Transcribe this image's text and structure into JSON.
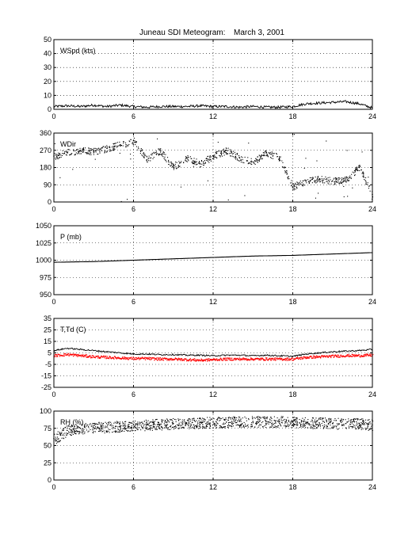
{
  "figure": {
    "title_left": "Juneau SDI Meteogram:",
    "title_date": "March  3, 2001"
  },
  "colors": {
    "axis": "#000000",
    "grid": "#000000",
    "series_black": "#000000",
    "series_red": "#ff0000"
  },
  "chart_data": [
    {
      "type": "line",
      "label": "WSpd (kts)",
      "xlim": [
        0,
        24
      ],
      "ylim": [
        0,
        50
      ],
      "xticks": [
        0,
        6,
        12,
        18,
        24
      ],
      "yticks": [
        0,
        10,
        20,
        30,
        40,
        50
      ],
      "grid": true,
      "series": [
        {
          "color": "#000000",
          "x": [
            0,
            1,
            2,
            3,
            4,
            5,
            6,
            7,
            8,
            9,
            10,
            11,
            12,
            13,
            14,
            15,
            16,
            17,
            18,
            19,
            20,
            21,
            22,
            23,
            24
          ],
          "values": [
            2,
            2.5,
            2,
            3,
            2,
            3,
            2,
            1.5,
            2,
            2,
            2,
            2.5,
            2,
            2,
            1.5,
            2,
            1.5,
            1.5,
            2,
            4,
            4.5,
            5,
            5.5,
            4,
            1
          ]
        }
      ]
    },
    {
      "type": "scatter",
      "label": "WDir",
      "xlim": [
        0,
        24
      ],
      "ylim": [
        0,
        360
      ],
      "xticks": [
        0,
        6,
        12,
        18,
        24
      ],
      "yticks": [
        0,
        90,
        180,
        270,
        360
      ],
      "grid": true,
      "series": [
        {
          "color": "#000000",
          "x": [
            0,
            1,
            2,
            3,
            4,
            5,
            6,
            7,
            8,
            9,
            10,
            11,
            12,
            13,
            14,
            15,
            16,
            17,
            18,
            19,
            20,
            21,
            22,
            23,
            24
          ],
          "values": [
            240,
            260,
            270,
            265,
            280,
            300,
            320,
            220,
            270,
            180,
            230,
            200,
            240,
            270,
            230,
            210,
            260,
            230,
            80,
            110,
            120,
            110,
            120,
            180,
            40
          ]
        }
      ]
    },
    {
      "type": "line",
      "label": "P (mb)",
      "xlim": [
        0,
        24
      ],
      "ylim": [
        950,
        1050
      ],
      "xticks": [
        0,
        6,
        12,
        18,
        24
      ],
      "yticks": [
        950,
        975,
        1000,
        1025,
        1050
      ],
      "grid": true,
      "series": [
        {
          "color": "#000000",
          "x": [
            0,
            3,
            6,
            9,
            12,
            15,
            18,
            21,
            24
          ],
          "values": [
            997,
            998,
            1000,
            1002,
            1004,
            1006,
            1007,
            1009,
            1011
          ]
        }
      ]
    },
    {
      "type": "line",
      "label": "T,Td (C)",
      "xlim": [
        0,
        24
      ],
      "ylim": [
        -25,
        35
      ],
      "xticks": [
        0,
        6,
        12,
        18,
        24
      ],
      "yticks": [
        -25,
        -15,
        -5,
        5,
        15,
        25,
        35
      ],
      "grid": true,
      "series": [
        {
          "color": "#000000",
          "x": [
            0,
            1,
            2,
            3,
            4,
            5,
            6,
            7,
            8,
            9,
            10,
            11,
            12,
            13,
            14,
            15,
            16,
            17,
            18,
            19,
            20,
            21,
            22,
            23,
            24
          ],
          "values": [
            7,
            9,
            8,
            7,
            6,
            5,
            4,
            4,
            3.5,
            3.5,
            3,
            3,
            2.5,
            3,
            3,
            2.5,
            3,
            2.5,
            2,
            4,
            5,
            6,
            6.5,
            7,
            8
          ]
        },
        {
          "color": "#ff0000",
          "x": [
            0,
            1,
            2,
            3,
            4,
            5,
            6,
            7,
            8,
            9,
            10,
            11,
            12,
            13,
            14,
            15,
            16,
            17,
            18,
            19,
            20,
            21,
            22,
            23,
            24
          ],
          "values": [
            3,
            4,
            3,
            2,
            1.5,
            1,
            0.5,
            0.5,
            0,
            0,
            -0.5,
            -1,
            -0.5,
            0,
            0,
            0,
            0,
            0,
            0,
            1.5,
            2,
            2.5,
            3,
            3,
            3.5
          ]
        }
      ]
    },
    {
      "type": "scatter",
      "label": "RH (%)",
      "xlim": [
        0,
        24
      ],
      "ylim": [
        0,
        100
      ],
      "xticks": [
        0,
        6,
        12,
        18,
        24
      ],
      "yticks": [
        0,
        25,
        50,
        75,
        100
      ],
      "grid": true,
      "series": [
        {
          "color": "#000000",
          "x": [
            0,
            0.5,
            1,
            2,
            3,
            4,
            5,
            6,
            7,
            8,
            9,
            10,
            11,
            12,
            13,
            14,
            15,
            16,
            17,
            18,
            19,
            20,
            21,
            22,
            23,
            24
          ],
          "values": [
            60,
            65,
            72,
            75,
            76,
            77,
            78,
            80,
            80,
            81,
            82,
            83,
            83,
            84,
            84,
            85,
            85,
            85,
            85,
            84,
            83,
            83,
            82,
            82,
            82,
            80
          ]
        }
      ]
    }
  ]
}
